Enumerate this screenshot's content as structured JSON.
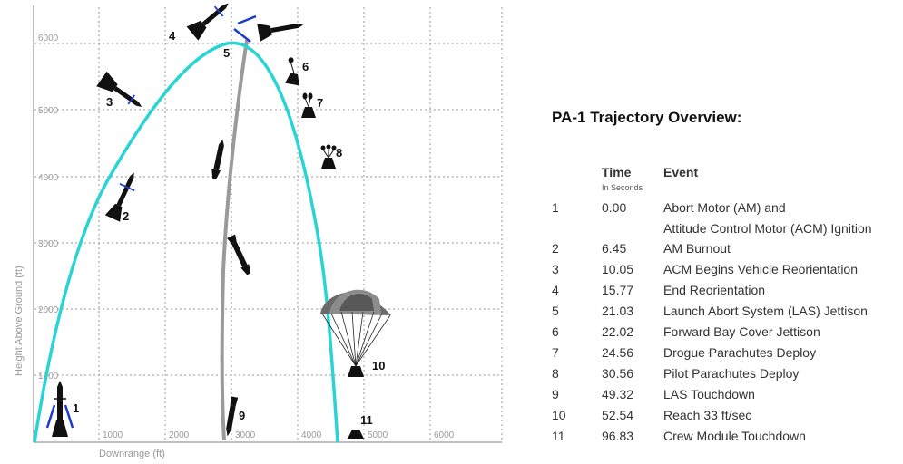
{
  "diagram": {
    "y_axis_label": "Height Above Ground (ft)",
    "x_axis_label": "Downrange (ft)",
    "y_ticks": [
      "1000",
      "2000",
      "3000",
      "4000",
      "5000",
      "6000"
    ],
    "x_ticks": [
      "1000",
      "2000",
      "3000",
      "4000",
      "5000",
      "6000"
    ],
    "event_markers": [
      "1",
      "2",
      "3",
      "4",
      "5",
      "6",
      "7",
      "8",
      "9",
      "10",
      "11"
    ],
    "trajectory_color": "#2ad4d4",
    "las_path_color": "#9a9a9a",
    "grid_style": "dotted",
    "icons": [
      "rocket-icon",
      "crew-module-icon",
      "parachute-icon",
      "drogue-chute-icon",
      "pilot-chute-icon",
      "las-tower-icon"
    ]
  },
  "panel": {
    "title": "PA-1 Trajectory Overview:",
    "col_time": "Time",
    "col_time_sub": "In Seconds",
    "col_event": "Event",
    "rows": [
      {
        "num": "1",
        "time": "0.00",
        "event": "Abort Motor (AM) and"
      },
      {
        "num": "",
        "time": "",
        "event": "Attitude Control Motor (ACM) Ignition"
      },
      {
        "num": "2",
        "time": "6.45",
        "event": "AM Burnout"
      },
      {
        "num": "3",
        "time": "10.05",
        "event": "ACM Begins Vehicle Reorientation"
      },
      {
        "num": "4",
        "time": "15.77",
        "event": "End Reorientation"
      },
      {
        "num": "5",
        "time": "21.03",
        "event": "Launch Abort System (LAS) Jettison"
      },
      {
        "num": "6",
        "time": "22.02",
        "event": "Forward Bay Cover Jettison"
      },
      {
        "num": "7",
        "time": "24.56",
        "event": "Drogue Parachutes Deploy"
      },
      {
        "num": "8",
        "time": "30.56",
        "event": "Pilot Parachutes Deploy"
      },
      {
        "num": "9",
        "time": "49.32",
        "event": "LAS Touchdown"
      },
      {
        "num": "10",
        "time": "52.54",
        "event": "Reach 33 ft/sec"
      },
      {
        "num": "11",
        "time": "96.83",
        "event": "Crew Module Touchdown"
      }
    ]
  }
}
